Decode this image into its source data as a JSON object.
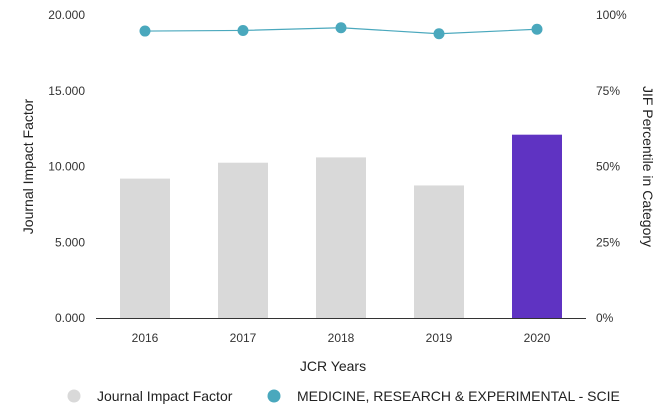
{
  "chart_data": {
    "type": "bar",
    "title": "",
    "xlabel": "JCR Years",
    "ylabel": "Journal Impact Factor",
    "y2label": "JIF Percentile in Category",
    "categories": [
      "2016",
      "2017",
      "2018",
      "2019",
      "2020"
    ],
    "ylim": [
      0,
      20
    ],
    "y2lim": [
      0,
      100
    ],
    "y_ticks": [
      "0.000",
      "5.000",
      "10.000",
      "15.000",
      "20.000"
    ],
    "y2_ticks": [
      "0%",
      "25%",
      "50%",
      "75%",
      "100%"
    ],
    "grid": false,
    "legend_position": "bottom",
    "series": [
      {
        "name": "Journal Impact Factor",
        "type": "bar",
        "axis": "left",
        "values": [
          9.2,
          10.25,
          10.6,
          8.75,
          12.1
        ],
        "color": "#d9d9d9",
        "highlight_index": 4,
        "highlight_color": "#5f33c2"
      },
      {
        "name": "MEDICINE, RESEARCH & EXPERIMENTAL - SCIE",
        "type": "line",
        "axis": "right",
        "values": [
          94.7,
          94.9,
          95.8,
          93.8,
          95.3
        ],
        "color": "#4aa8bd"
      }
    ]
  }
}
